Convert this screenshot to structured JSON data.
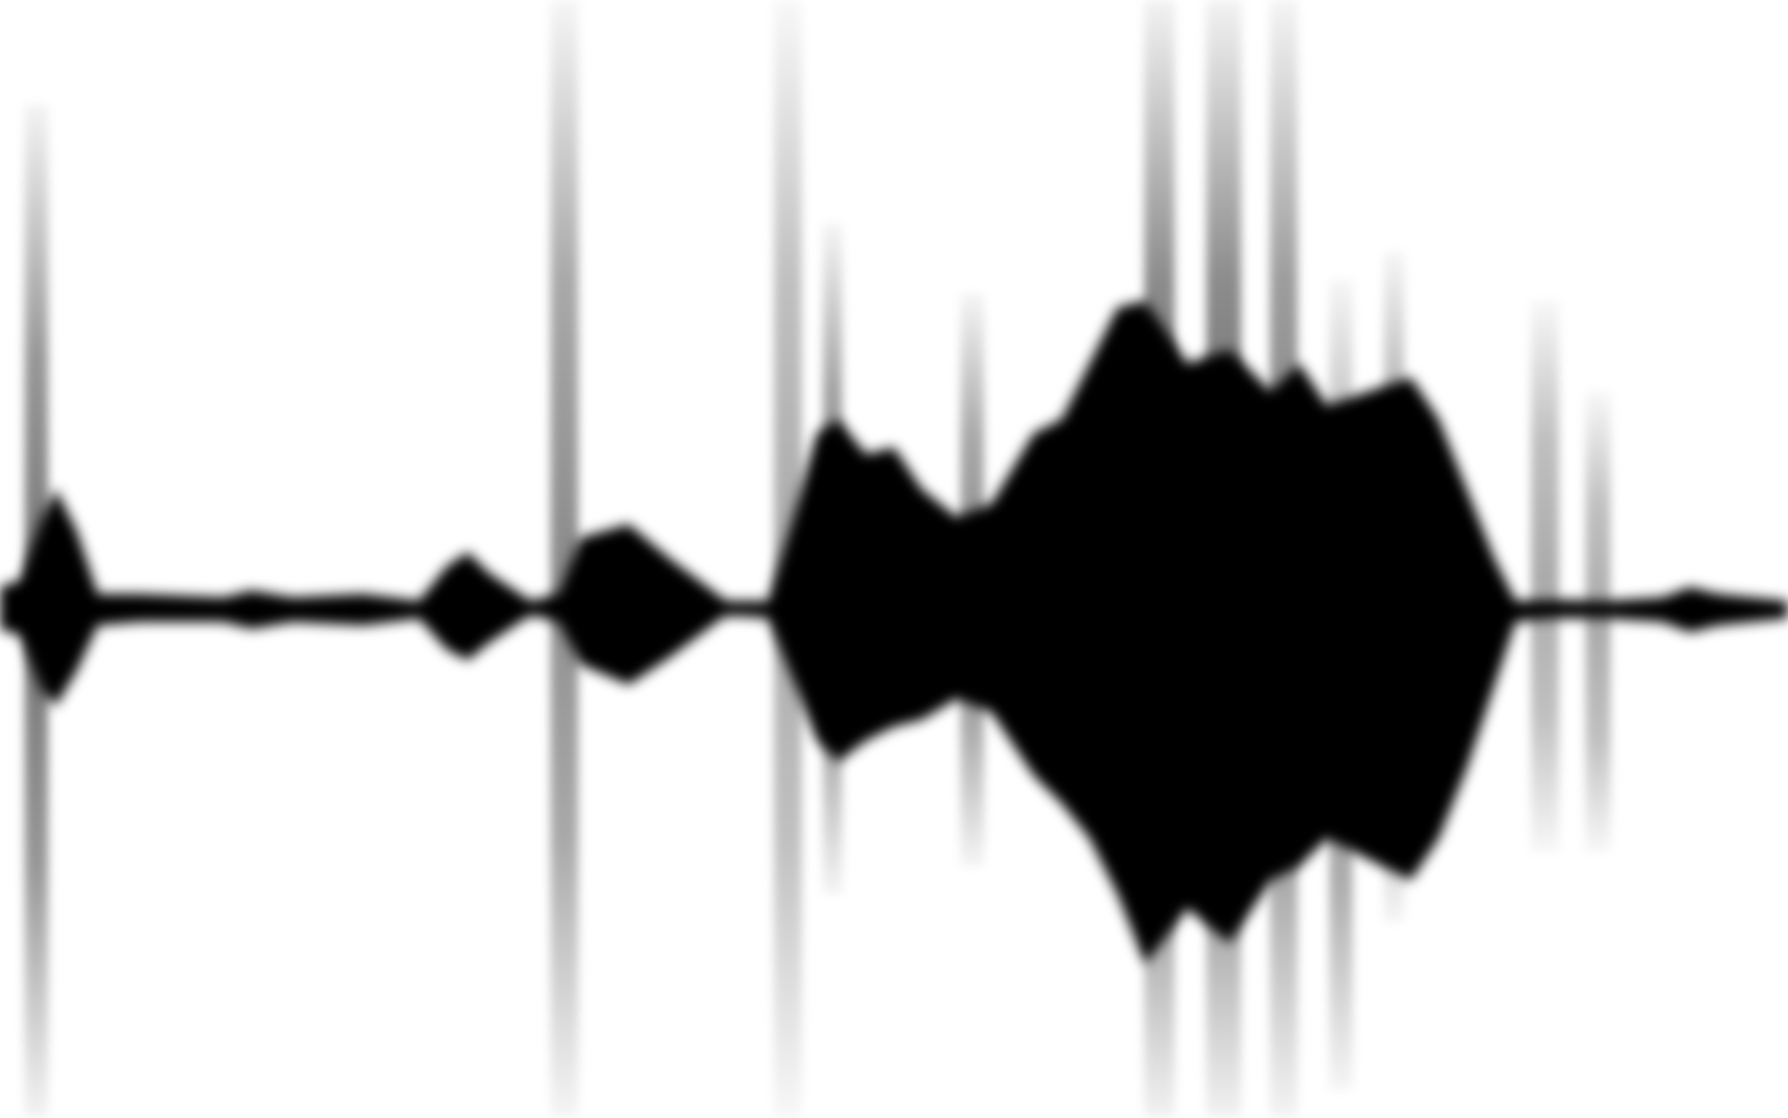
{
  "image": {
    "subject": "blurred-audio-waveform",
    "colors": {
      "background": "#ffffff",
      "wave": "#000000",
      "streak": "#8a8a8a"
    }
  }
}
